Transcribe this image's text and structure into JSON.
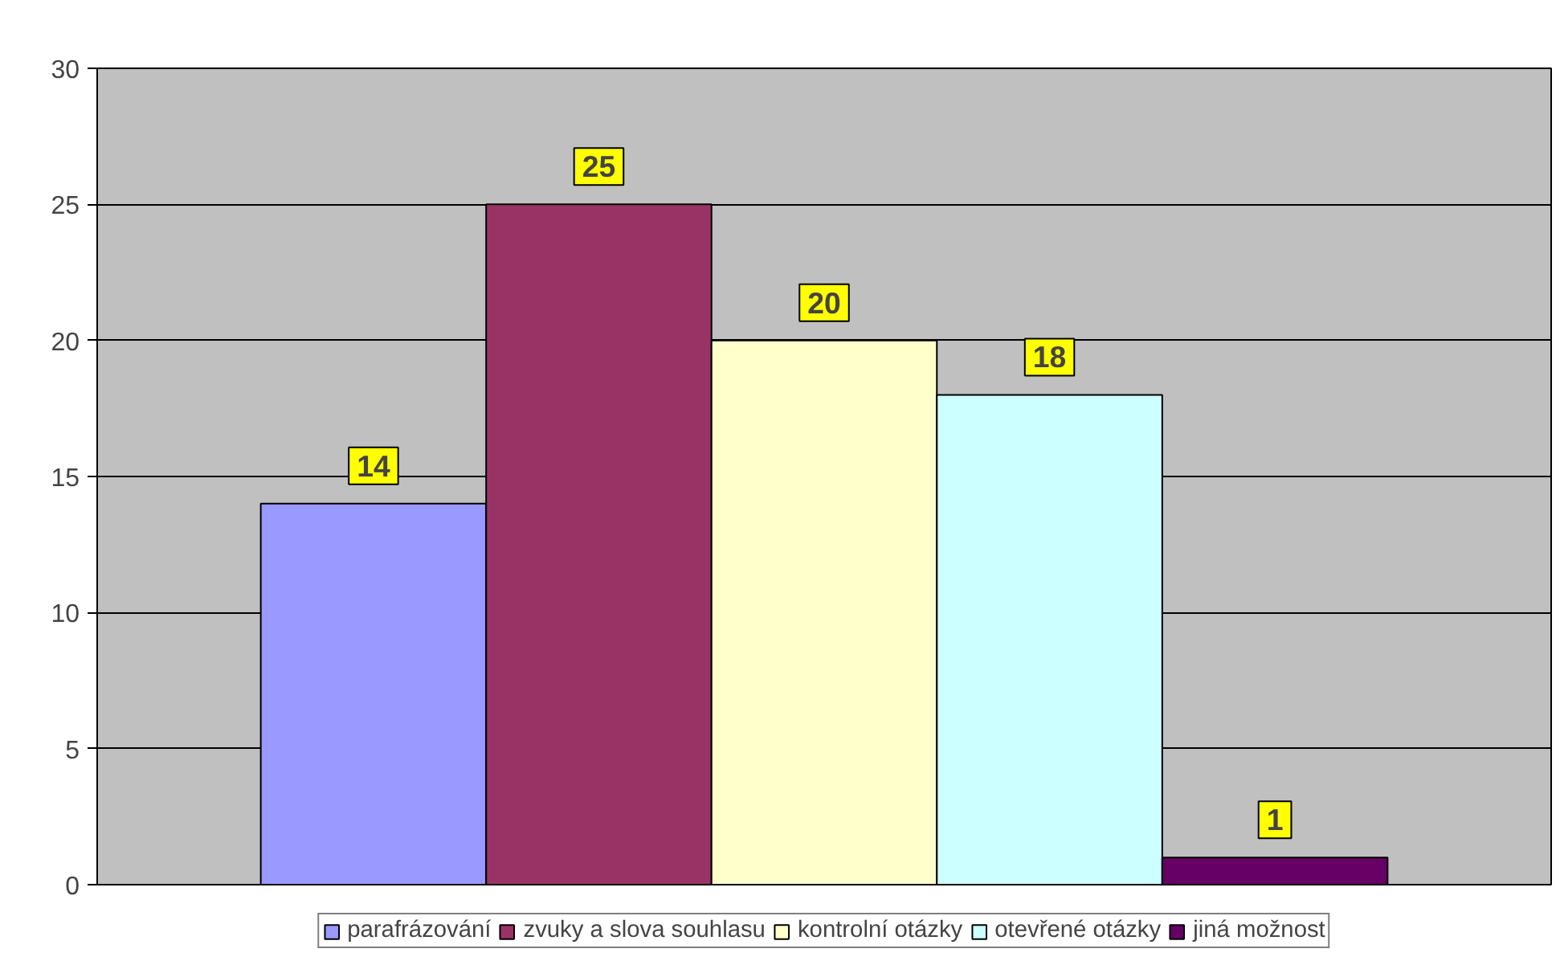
{
  "chart_data": {
    "type": "bar",
    "categories": [
      null
    ],
    "series": [
      {
        "name": "parafrázování",
        "color": "#9999ff",
        "values": [
          14
        ]
      },
      {
        "name": "zvuky a slova souhlasu",
        "color": "#993366",
        "values": [
          25
        ]
      },
      {
        "name": "kontrolní otázky",
        "color": "#ffffcc",
        "values": [
          20
        ]
      },
      {
        "name": "otevřené otázky",
        "color": "#ccffff",
        "values": [
          18
        ]
      },
      {
        "name": "jiná možnost",
        "color": "#660066",
        "values": [
          1
        ]
      }
    ],
    "ylim": [
      0,
      30
    ],
    "yticks": [
      0,
      5,
      10,
      15,
      20,
      25,
      30
    ],
    "grid": "y",
    "legend": "bottom",
    "data_labels": true
  }
}
